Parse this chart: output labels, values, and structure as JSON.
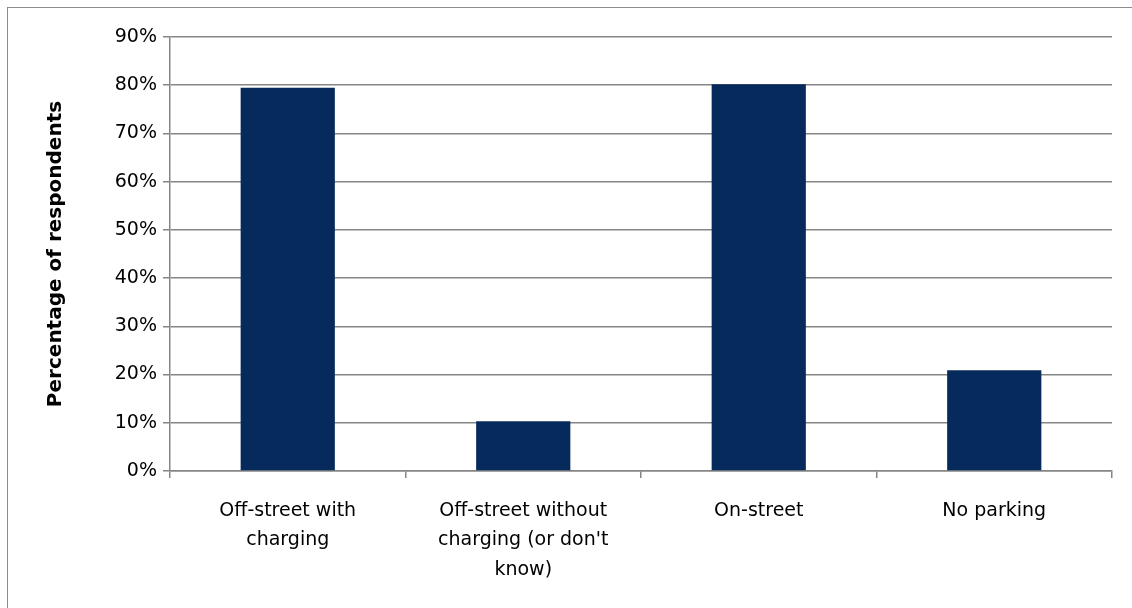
{
  "chart_data": {
    "type": "bar",
    "categories": [
      "Off-street with charging",
      "Off-street without charging (or don't know)",
      "On-street",
      "No parking"
    ],
    "values": [
      79.5,
      10.3,
      80.2,
      20.9
    ],
    "color": "#072a5c",
    "ylabel": "Percentage of respondents",
    "ylim": [
      0,
      90
    ],
    "yticks": [
      {
        "value": 0,
        "label": "0%"
      },
      {
        "value": 10,
        "label": "10%"
      },
      {
        "value": 20,
        "label": "20%"
      },
      {
        "value": 30,
        "label": "30%"
      },
      {
        "value": 40,
        "label": "40%"
      },
      {
        "value": 50,
        "label": "50%"
      },
      {
        "value": 60,
        "label": "60%"
      },
      {
        "value": 70,
        "label": "70%"
      },
      {
        "value": 80,
        "label": "80%"
      },
      {
        "value": 90,
        "label": "90%"
      }
    ],
    "grid": "y",
    "legend": false
  }
}
